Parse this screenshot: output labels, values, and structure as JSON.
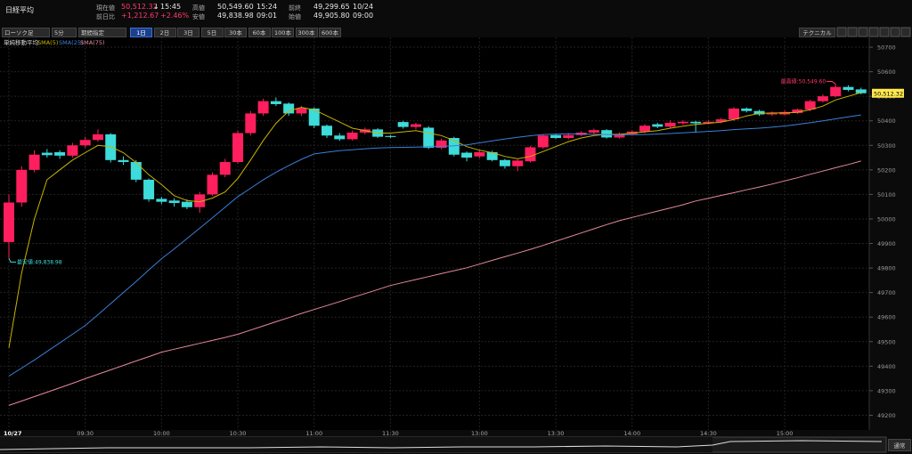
{
  "header": {
    "title": "日経平均",
    "quotes": [
      {
        "label": "現在値",
        "value": "50,512.32",
        "arrow": "↓",
        "time": "15:45"
      },
      {
        "label": "前日比",
        "value": "+1,212.67",
        "change": "+2.46%"
      },
      {
        "label": "高値",
        "value": "50,549.60",
        "time": "15:24"
      },
      {
        "label": "安値",
        "value": "49,838.98",
        "time": "09:01"
      },
      {
        "label": "前終",
        "value": "49,299.65",
        "time": "10/24"
      },
      {
        "label": "始値",
        "value": "49,905.80",
        "time": "09:00"
      }
    ]
  },
  "toolbar": {
    "chart_type": "ローソク足",
    "interval": "5分",
    "range": "期間指定",
    "periods": [
      "1日",
      "2日",
      "3日",
      "5日",
      "30本",
      "60本",
      "100本",
      "300本",
      "600本"
    ],
    "technical": "テクニカル",
    "mode": "通常"
  },
  "chart_data": {
    "type": "candlestick",
    "legend_title": "単純移動平均",
    "categories": [
      "10/27",
      null,
      null,
      null,
      null,
      null,
      "09:30",
      null,
      null,
      null,
      null,
      null,
      "10:00",
      null,
      null,
      null,
      null,
      null,
      "10:30",
      null,
      null,
      null,
      null,
      null,
      "11:00",
      null,
      null,
      null,
      null,
      null,
      "11:30",
      null,
      null,
      null,
      null,
      null,
      null,
      "13:00",
      null,
      null,
      null,
      null,
      null,
      "13:30",
      null,
      null,
      null,
      null,
      null,
      "14:00",
      null,
      null,
      null,
      null,
      null,
      "14:30",
      null,
      null,
      null,
      null,
      null,
      "15:00",
      null,
      null,
      null,
      null,
      null,
      null
    ],
    "open": [
      49905.8,
      50067,
      50200,
      50270,
      50272,
      50258,
      50300,
      50322,
      50345,
      50240,
      50232,
      50160,
      50082,
      50075,
      50070,
      50048,
      50100,
      50180,
      50232,
      50350,
      50430,
      50480,
      50470,
      50430,
      50450,
      50380,
      50340,
      50325,
      50352,
      50365,
      50338,
      50395,
      50375,
      50372,
      50290,
      50330,
      50270,
      50255,
      50272,
      50240,
      50215,
      50235,
      50292,
      50342,
      50330,
      50342,
      50352,
      50362,
      50332,
      50346,
      50356,
      50386,
      50376,
      50390,
      50396,
      50390,
      50396,
      50406,
      50450,
      50440,
      50426,
      50426,
      50432,
      50446,
      50480,
      50500,
      50538,
      50528
    ],
    "high": [
      50100,
      50215,
      50280,
      50285,
      50280,
      50310,
      50335,
      50365,
      50350,
      50255,
      50240,
      50165,
      50090,
      50085,
      50080,
      50110,
      50190,
      50245,
      50360,
      50440,
      50490,
      50495,
      50475,
      50460,
      50455,
      50385,
      50350,
      50360,
      50372,
      50370,
      50342,
      50400,
      50392,
      50378,
      50328,
      50335,
      50275,
      50280,
      50278,
      50245,
      50242,
      50298,
      50346,
      50348,
      50350,
      50358,
      50368,
      50366,
      50352,
      50362,
      50386,
      50392,
      50402,
      50402,
      50400,
      50402,
      50412,
      50456,
      50455,
      50445,
      50438,
      50442,
      50450,
      50486,
      50508,
      50549.6,
      50545,
      50535
    ],
    "low": [
      49838.98,
      50050,
      50190,
      50250,
      50245,
      50250,
      50290,
      50315,
      50230,
      50220,
      50150,
      50070,
      50060,
      50050,
      50040,
      50025,
      50095,
      50170,
      50225,
      50340,
      50420,
      50460,
      50420,
      50420,
      50370,
      50330,
      50318,
      50320,
      50345,
      50330,
      50330,
      50368,
      50365,
      50285,
      50284,
      50255,
      50235,
      50248,
      50235,
      50205,
      50195,
      50230,
      50285,
      50325,
      50325,
      50338,
      50345,
      50328,
      50328,
      50340,
      50350,
      50370,
      50372,
      50385,
      50352,
      50386,
      50390,
      50400,
      50434,
      50420,
      50420,
      50422,
      50428,
      50440,
      50475,
      50495,
      50520,
      50508
    ],
    "close": [
      50067,
      50200,
      50262,
      50260,
      50258,
      50300,
      50322,
      50345,
      50240,
      50232,
      50160,
      50080,
      50070,
      50065,
      50048,
      50100,
      50180,
      50232,
      50350,
      50430,
      50480,
      50468,
      50430,
      50452,
      50380,
      50340,
      50325,
      50352,
      50365,
      50335,
      50334,
      50375,
      50386,
      50290,
      50320,
      50262,
      50250,
      50272,
      50240,
      50215,
      50238,
      50292,
      50340,
      50330,
      50342,
      50352,
      50362,
      50332,
      50346,
      50356,
      50380,
      50376,
      50392,
      50396,
      50390,
      50396,
      50406,
      50450,
      50440,
      50426,
      50432,
      50436,
      50446,
      50480,
      50500,
      50538,
      50526,
      50512.32
    ],
    "up_color": "#ff1f5e",
    "down_color": "#3ddbd9",
    "lines": [
      {
        "name": "SMA(5)",
        "color": "#c9b400",
        "values": [
          49475,
          49780,
          50000,
          50160,
          50200,
          50240,
          50270,
          50300,
          50295,
          50270,
          50230,
          50180,
          50140,
          50095,
          50075,
          50070,
          50085,
          50110,
          50165,
          50240,
          50320,
          50390,
          50440,
          50455,
          50445,
          50420,
          50395,
          50370,
          50360,
          50350,
          50350,
          50355,
          50360,
          50350,
          50340,
          50320,
          50295,
          50280,
          50270,
          50255,
          50245,
          50255,
          50275,
          50295,
          50315,
          50330,
          50340,
          50345,
          50345,
          50350,
          50355,
          50360,
          50370,
          50378,
          50385,
          50390,
          50395,
          50405,
          50420,
          50430,
          50432,
          50432,
          50435,
          50445,
          50460,
          50485,
          50500,
          50515
        ]
      },
      {
        "name": "SMA(25)",
        "color": "#3b7fd9",
        "values": [
          49360,
          49392,
          49425,
          49460,
          49495,
          49530,
          49566,
          49610,
          49655,
          49700,
          49745,
          49792,
          49838,
          49878,
          49920,
          49962,
          50005,
          50048,
          50091,
          50125,
          50160,
          50190,
          50218,
          50243,
          50265,
          50272,
          50278,
          50282,
          50286,
          50289,
          50291,
          50292,
          50293,
          50294,
          50296,
          50298,
          50302,
          50310,
          50318,
          50326,
          50333,
          50339,
          50344,
          50346,
          50347,
          50346,
          50345,
          50344,
          50343,
          50343,
          50344,
          50346,
          50348,
          50351,
          50354,
          50357,
          50360,
          50364,
          50367,
          50370,
          50374,
          50379,
          50385,
          50392,
          50400,
          50408,
          50416,
          50424
        ]
      },
      {
        "name": "SMA(75)",
        "color": "#e68a9c",
        "values": [
          49240,
          49258,
          49276,
          49294,
          49312,
          49330,
          49349,
          49367,
          49385,
          49403,
          49421,
          49439,
          49457,
          49469,
          49481,
          49493,
          49505,
          49517,
          49530,
          49547,
          49564,
          49581,
          49598,
          49615,
          49631,
          49647,
          49663,
          49680,
          49696,
          49712,
          49729,
          49741,
          49753,
          49765,
          49777,
          49789,
          49801,
          49816,
          49831,
          49846,
          49861,
          49876,
          49892,
          49909,
          49926,
          49943,
          49960,
          49977,
          49993,
          50006,
          50019,
          50032,
          50045,
          50058,
          50073,
          50084,
          50096,
          50107,
          50119,
          50130,
          50142,
          50155,
          50168,
          50182,
          50195,
          50209,
          50222,
          50236
        ]
      }
    ],
    "annotations": [
      {
        "text": "最安値:49,838.98",
        "value": 49838.98,
        "color": "#3ddbd9"
      },
      {
        "text": "最高値:50,549.60",
        "value": 50549.6,
        "color": "#ff3b6b"
      }
    ],
    "last_price": {
      "value": 50512.32,
      "label": "50,512.32"
    },
    "ylim": [
      49140,
      50740
    ],
    "yticks": [
      49200,
      49300,
      49400,
      49500,
      49600,
      49700,
      49800,
      49900,
      50000,
      50100,
      50200,
      50300,
      50400,
      50500,
      50600,
      50700
    ],
    "grid": true
  }
}
